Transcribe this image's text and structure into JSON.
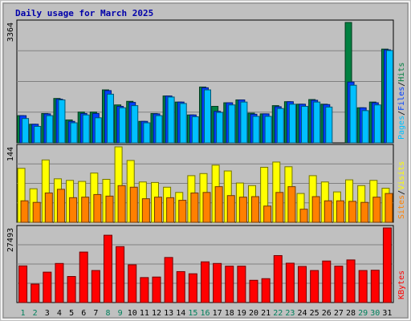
{
  "chart_data": {
    "title": "Daily usage for March 2025",
    "type": "bar",
    "days": [
      "1",
      "2",
      "3",
      "4",
      "5",
      "6",
      "7",
      "8",
      "9",
      "10",
      "11",
      "12",
      "13",
      "14",
      "15",
      "16",
      "17",
      "18",
      "19",
      "20",
      "21",
      "22",
      "23",
      "24",
      "25",
      "26",
      "27",
      "28",
      "29",
      "30",
      "31"
    ],
    "weekend_days": [
      "1",
      "2",
      "8",
      "9",
      "15",
      "16",
      "22",
      "23",
      "29",
      "30"
    ],
    "colors": {
      "hits": "#008040",
      "files": "#0040ff",
      "pages": "#00c0ff",
      "visits": "#ffff00",
      "sites": "#ff8000",
      "kbytes": "#ff0000",
      "title": "#0000aa",
      "weekday": "#000000",
      "weekend": "#00805c",
      "panel_bg": "#c0c0c0",
      "grid": "#808080"
    },
    "panels": [
      {
        "name": "hits-files-pages",
        "ymax": 3364,
        "series": [
          {
            "name": "Hits",
            "color": "#008040",
            "values": [
              760,
              520,
              820,
              1240,
              640,
              860,
              860,
              1480,
              1060,
              1160,
              600,
              820,
              1310,
              1140,
              780,
              1560,
              1020,
              1120,
              1200,
              830,
              810,
              1040,
              1150,
              1080,
              1210,
              1080,
              0,
              3364,
              980,
              1140,
              2620
            ]
          },
          {
            "name": "Files",
            "color": "#0040ff",
            "values": [
              760,
              520,
              810,
              1220,
              600,
              820,
              820,
              1460,
              1020,
              1130,
              600,
              810,
              1310,
              1140,
              780,
              1540,
              880,
              1120,
              1200,
              800,
              810,
              1010,
              1150,
              1080,
              1190,
              1070,
              0,
              1700,
              980,
              1120,
              2600
            ]
          },
          {
            "name": "Pages",
            "color": "#00c0ff",
            "values": [
              680,
              460,
              760,
              1200,
              560,
              780,
              700,
              1360,
              980,
              1040,
              560,
              760,
              1280,
              1100,
              730,
              1480,
              850,
              1060,
              1140,
              740,
              740,
              960,
              1080,
              1020,
              1140,
              1000,
              0,
              1610,
              900,
              1060,
              2580
            ]
          }
        ],
        "legend": [
          "Pages",
          "/",
          "Files",
          "/",
          "Hits"
        ]
      },
      {
        "name": "visits-sites",
        "ymax": 144,
        "series": [
          {
            "name": "Visits",
            "color": "#ffff00",
            "values": [
              103,
              64,
              119,
              83,
              80,
              78,
              94,
              82,
              144,
              118,
              77,
              76,
              67,
              57,
              89,
              93,
              109,
              98,
              75,
              70,
              105,
              115,
              106,
              55,
              89,
              77,
              58,
              81,
              70,
              80,
              65
            ]
          },
          {
            "name": "Sites",
            "color": "#ff8000",
            "values": [
              41,
              38,
              56,
              63,
              47,
              48,
              53,
              50,
              70,
              67,
              45,
              48,
              47,
              42,
              56,
              57,
              68,
              51,
              48,
              49,
              31,
              57,
              68,
              25,
              49,
              41,
              41,
              40,
              38,
              48,
              55
            ]
          }
        ],
        "legend": [
          "Sites",
          "/",
          "Visits"
        ]
      },
      {
        "name": "kbytes",
        "ymax": 27493,
        "series": [
          {
            "name": "KBytes",
            "color": "#ff0000",
            "values": [
              13500,
              6800,
              11200,
              14400,
              9600,
              18600,
              11800,
              24800,
              20600,
              13900,
              9200,
              9400,
              16600,
              11400,
              10600,
              15000,
              14400,
              13400,
              13400,
              8200,
              8800,
              17300,
              14500,
              13300,
              11800,
              15300,
              13400,
              15700,
              11800,
              11900,
              27493
            ]
          }
        ],
        "legend": [
          "KBytes"
        ]
      }
    ]
  }
}
